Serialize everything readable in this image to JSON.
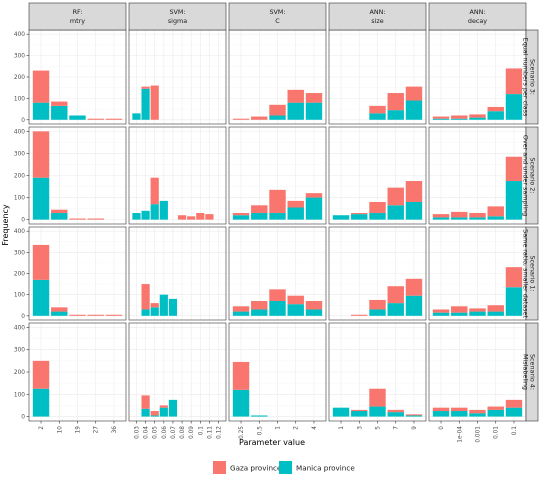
{
  "chart_data": {
    "type": "bar",
    "stacked": true,
    "xlabel": "Parameter value",
    "ylabel": "Frequency",
    "ylim": [
      0,
      400
    ],
    "y_ticks": [
      0,
      100,
      200,
      300,
      400
    ],
    "grid": true,
    "legend_position": "bottom",
    "colors": {
      "Gaza province": "#F8766D",
      "Manica province": "#00BFC4",
      "strip_fill": "#d9d9d9",
      "grid": "#ebebeb",
      "panel_border": "#333333"
    },
    "series_names": [
      "Gaza province",
      "Manica province"
    ],
    "facet_columns": [
      {
        "label_line1": "RF:",
        "label_line2": "mtry",
        "tick_labels": [
          "2",
          "10",
          "19",
          "27",
          "36"
        ]
      },
      {
        "label_line1": "SVM:",
        "label_line2": "sigma",
        "tick_labels": [
          "0.03",
          "0.04",
          "0.05",
          "0.06",
          "0.07",
          "0.08",
          "0.09",
          "0.1",
          "0.11",
          "0.12"
        ]
      },
      {
        "label_line1": "SVM:",
        "label_line2": "C",
        "tick_labels": [
          "0.25",
          "0.5",
          "1",
          "2",
          "4"
        ]
      },
      {
        "label_line1": "ANN:",
        "label_line2": "size",
        "tick_labels": [
          "1",
          "3",
          "5",
          "7",
          "9"
        ]
      },
      {
        "label_line1": "ANN:",
        "label_line2": "decay",
        "tick_labels": [
          "0",
          "1e-04",
          "0.001",
          "0.01",
          "0.1"
        ]
      }
    ],
    "facet_rows": [
      {
        "label": "Scenario 3: Equal numbers per class",
        "panels": [
          {
            "categories": [
              "2",
              "10",
              "19",
              "27",
              "36"
            ],
            "gaza": [
              150,
              20,
              0,
              5,
              5
            ],
            "manica": [
              80,
              65,
              20,
              0,
              0
            ]
          },
          {
            "categories": [
              "0.03",
              "0.04",
              "0.05",
              "0.06",
              "0.07",
              "0.08",
              "0.09",
              "0.1",
              "0.11",
              "0.12"
            ],
            "gaza": [
              0,
              10,
              160,
              0,
              0,
              0,
              0,
              0,
              0,
              0
            ],
            "manica": [
              30,
              145,
              0,
              0,
              0,
              0,
              0,
              0,
              0,
              0
            ]
          },
          {
            "categories": [
              "0.25",
              "0.5",
              "1",
              "2",
              "4"
            ],
            "gaza": [
              5,
              15,
              50,
              60,
              45
            ],
            "manica": [
              0,
              0,
              20,
              80,
              80
            ]
          },
          {
            "categories": [
              "1",
              "3",
              "5",
              "7",
              "9"
            ],
            "gaza": [
              0,
              0,
              35,
              80,
              65
            ],
            "manica": [
              0,
              0,
              30,
              45,
              90
            ]
          },
          {
            "categories": [
              "0",
              "1e-04",
              "0.001",
              "0.01",
              "0.1"
            ],
            "gaza": [
              10,
              15,
              15,
              20,
              120
            ],
            "manica": [
              5,
              5,
              10,
              40,
              120
            ]
          }
        ]
      },
      {
        "label": "Scenario 2: Over and under sampling",
        "panels": [
          {
            "categories": [
              "2",
              "10",
              "19",
              "27",
              "36"
            ],
            "gaza": [
              210,
              15,
              5,
              5,
              0
            ],
            "manica": [
              190,
              30,
              0,
              0,
              0
            ]
          },
          {
            "categories": [
              "0.03",
              "0.04",
              "0.05",
              "0.06",
              "0.07",
              "0.08",
              "0.09",
              "0.1",
              "0.11",
              "0.12"
            ],
            "gaza": [
              0,
              0,
              120,
              0,
              0,
              20,
              15,
              30,
              25,
              0
            ],
            "manica": [
              30,
              40,
              70,
              85,
              0,
              0,
              0,
              0,
              0,
              0
            ]
          },
          {
            "categories": [
              "0.25",
              "0.5",
              "1",
              "2",
              "4"
            ],
            "gaza": [
              10,
              35,
              105,
              30,
              20
            ],
            "manica": [
              20,
              30,
              30,
              55,
              100
            ]
          },
          {
            "categories": [
              "1",
              "3",
              "5",
              "7",
              "9"
            ],
            "gaza": [
              0,
              5,
              50,
              80,
              95
            ],
            "manica": [
              20,
              25,
              30,
              65,
              80
            ]
          },
          {
            "categories": [
              "0",
              "1e-04",
              "0.001",
              "0.01",
              "0.1"
            ],
            "gaza": [
              15,
              25,
              20,
              45,
              110
            ],
            "manica": [
              10,
              10,
              10,
              15,
              175
            ]
          }
        ]
      },
      {
        "label": "Scenario 1: Same ratio, smaller dataset",
        "panels": [
          {
            "categories": [
              "2",
              "10",
              "19",
              "27",
              "36"
            ],
            "gaza": [
              165,
              20,
              5,
              5,
              5
            ],
            "manica": [
              170,
              20,
              0,
              0,
              0
            ]
          },
          {
            "categories": [
              "0.03",
              "0.04",
              "0.05",
              "0.06",
              "0.07",
              "0.08",
              "0.09",
              "0.1",
              "0.11",
              "0.12"
            ],
            "gaza": [
              0,
              120,
              20,
              0,
              0,
              0,
              0,
              0,
              0,
              0
            ],
            "manica": [
              0,
              30,
              40,
              100,
              80,
              0,
              0,
              0,
              0,
              0
            ]
          },
          {
            "categories": [
              "0.25",
              "0.5",
              "1",
              "2",
              "4"
            ],
            "gaza": [
              25,
              40,
              55,
              40,
              40
            ],
            "manica": [
              20,
              30,
              70,
              55,
              30
            ]
          },
          {
            "categories": [
              "1",
              "3",
              "5",
              "7",
              "9"
            ],
            "gaza": [
              0,
              5,
              45,
              80,
              80
            ],
            "manica": [
              0,
              0,
              30,
              60,
              95
            ]
          },
          {
            "categories": [
              "0",
              "1e-04",
              "0.001",
              "0.01",
              "0.1"
            ],
            "gaza": [
              15,
              30,
              15,
              30,
              95
            ],
            "manica": [
              15,
              15,
              20,
              20,
              135
            ]
          }
        ]
      },
      {
        "label": "Scenario 4: Mislabeling",
        "panels": [
          {
            "categories": [
              "2",
              "10",
              "19",
              "27",
              "36"
            ],
            "gaza": [
              125,
              0,
              0,
              0,
              0
            ],
            "manica": [
              125,
              0,
              0,
              0,
              0
            ]
          },
          {
            "categories": [
              "0.03",
              "0.04",
              "0.05",
              "0.06",
              "0.07",
              "0.08",
              "0.09",
              "0.1",
              "0.11",
              "0.12"
            ],
            "gaza": [
              0,
              60,
              20,
              10,
              0,
              0,
              0,
              0,
              0,
              0
            ],
            "manica": [
              0,
              35,
              5,
              40,
              75,
              0,
              0,
              0,
              0,
              0
            ]
          },
          {
            "categories": [
              "0.25",
              "0.5",
              "1",
              "2",
              "4"
            ],
            "gaza": [
              125,
              0,
              0,
              0,
              0
            ],
            "manica": [
              120,
              5,
              0,
              0,
              0
            ]
          },
          {
            "categories": [
              "1",
              "3",
              "5",
              "7",
              "9"
            ],
            "gaza": [
              0,
              5,
              80,
              10,
              5
            ],
            "manica": [
              40,
              25,
              45,
              20,
              5
            ]
          },
          {
            "categories": [
              "0",
              "1e-04",
              "0.001",
              "0.01",
              "0.1"
            ],
            "gaza": [
              15,
              15,
              15,
              15,
              35
            ],
            "manica": [
              25,
              25,
              15,
              30,
              40
            ]
          }
        ]
      }
    ]
  }
}
